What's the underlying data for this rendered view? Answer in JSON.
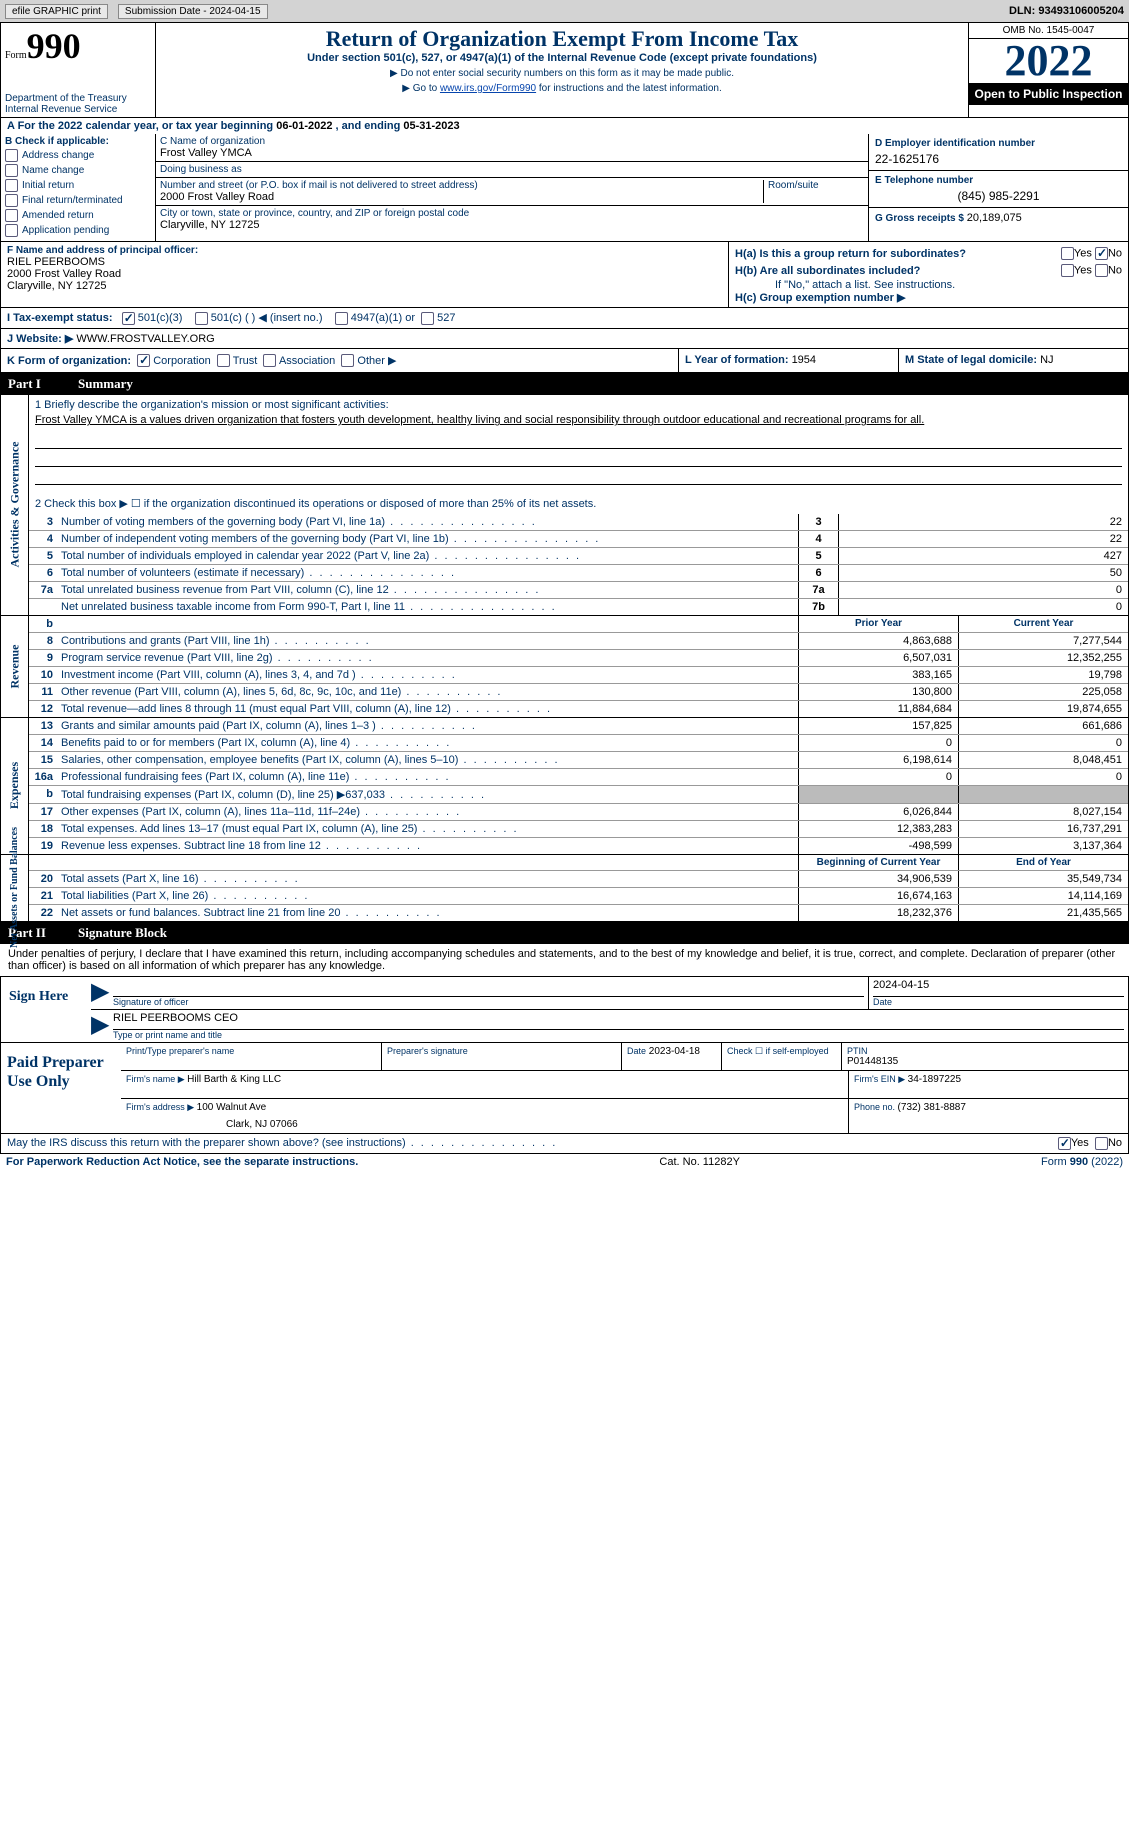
{
  "topbar": {
    "efile": "efile GRAPHIC print",
    "submission_label": "Submission Date - 2024-04-15",
    "dln": "DLN: 93493106005204"
  },
  "header": {
    "form_word": "Form",
    "form_no": "990",
    "dept": "Department of the Treasury",
    "irs": "Internal Revenue Service",
    "title": "Return of Organization Exempt From Income Tax",
    "subtitle": "Under section 501(c), 527, or 4947(a)(1) of the Internal Revenue Code (except private foundations)",
    "note1": "▶ Do not enter social security numbers on this form as it may be made public.",
    "note2_pre": "▶ Go to ",
    "note2_link": "www.irs.gov/Form990",
    "note2_post": " for instructions and the latest information.",
    "omb": "OMB No. 1545-0047",
    "year": "2022",
    "inspection": "Open to Public Inspection"
  },
  "lineA": {
    "pre": "A For the 2022 calendar year, or tax year beginning ",
    "begin": "06-01-2022",
    "mid": "   , and ending ",
    "end": "05-31-2023"
  },
  "b": {
    "heading": "B Check if applicable:",
    "opts": [
      "Address change",
      "Name change",
      "Initial return",
      "Final return/terminated",
      "Amended return",
      "Application pending"
    ]
  },
  "c": {
    "name_label": "C Name of organization",
    "name": "Frost Valley YMCA",
    "dba_label": "Doing business as",
    "dba": "",
    "addr_label": "Number and street (or P.O. box if mail is not delivered to street address)",
    "room_label": "Room/suite",
    "addr": "2000 Frost Valley Road",
    "city_label": "City or town, state or province, country, and ZIP or foreign postal code",
    "city": "Claryville, NY  12725"
  },
  "d": {
    "label": "D Employer identification number",
    "val": "22-1625176",
    "e_label": "E Telephone number",
    "e_val": "(845) 985-2291",
    "g_label": "G Gross receipts $ ",
    "g_val": "20,189,075"
  },
  "f": {
    "label": "F Name and address of principal officer:",
    "name": "RIEL PEERBOOMS",
    "addr1": "2000 Frost Valley Road",
    "addr2": "Claryville, NY  12725"
  },
  "h": {
    "ha": "H(a)  Is this a group return for subordinates?",
    "hb": "H(b)  Are all subordinates included?",
    "hb_note": "If \"No,\" attach a list. See instructions.",
    "hc": "H(c)  Group exemption number ▶",
    "yes": "Yes",
    "no": "No"
  },
  "i": {
    "label": "I   Tax-exempt status:",
    "o1": "501(c)(3)",
    "o2": "501(c) (  ) ◀ (insert no.)",
    "o3": "4947(a)(1) or",
    "o4": "527"
  },
  "j": {
    "label": "J   Website: ▶",
    "val": " WWW.FROSTVALLEY.ORG"
  },
  "k": {
    "label": "K Form of organization:",
    "o1": "Corporation",
    "o2": "Trust",
    "o3": "Association",
    "o4": "Other ▶"
  },
  "l": {
    "label": "L Year of formation: ",
    "val": "1954"
  },
  "m": {
    "label": "M State of legal domicile: ",
    "val": "NJ"
  },
  "part1": {
    "num": "Part I",
    "title": "Summary"
  },
  "mission": {
    "q": "1   Briefly describe the organization's mission or most significant activities:",
    "text": "Frost Valley YMCA is a values driven organization that fosters youth development, healthy living and social responsibility through outdoor educational and recreational programs for all."
  },
  "line2": "2   Check this box ▶ ☐  if the organization discontinued its operations or disposed of more than 25% of its net assets.",
  "rows_ag": [
    {
      "n": "3",
      "d": "Number of voting members of the governing body (Part VI, line 1a)",
      "b": "3",
      "v": "22"
    },
    {
      "n": "4",
      "d": "Number of independent voting members of the governing body (Part VI, line 1b)",
      "b": "4",
      "v": "22"
    },
    {
      "n": "5",
      "d": "Total number of individuals employed in calendar year 2022 (Part V, line 2a)",
      "b": "5",
      "v": "427"
    },
    {
      "n": "6",
      "d": "Total number of volunteers (estimate if necessary)",
      "b": "6",
      "v": "50"
    },
    {
      "n": "7a",
      "d": "Total unrelated business revenue from Part VIII, column (C), line 12",
      "b": "7a",
      "v": "0"
    },
    {
      "n": "",
      "d": "Net unrelated business taxable income from Form 990-T, Part I, line 11",
      "b": "7b",
      "v": "0"
    }
  ],
  "col_hdr": {
    "prior": "Prior Year",
    "curr": "Current Year"
  },
  "rows_rev": [
    {
      "n": "8",
      "d": "Contributions and grants (Part VIII, line 1h)",
      "p": "4,863,688",
      "c": "7,277,544"
    },
    {
      "n": "9",
      "d": "Program service revenue (Part VIII, line 2g)",
      "p": "6,507,031",
      "c": "12,352,255"
    },
    {
      "n": "10",
      "d": "Investment income (Part VIII, column (A), lines 3, 4, and 7d )",
      "p": "383,165",
      "c": "19,798"
    },
    {
      "n": "11",
      "d": "Other revenue (Part VIII, column (A), lines 5, 6d, 8c, 9c, 10c, and 11e)",
      "p": "130,800",
      "c": "225,058"
    },
    {
      "n": "12",
      "d": "Total revenue—add lines 8 through 11 (must equal Part VIII, column (A), line 12)",
      "p": "11,884,684",
      "c": "19,874,655"
    }
  ],
  "rows_exp": [
    {
      "n": "13",
      "d": "Grants and similar amounts paid (Part IX, column (A), lines 1–3 )",
      "p": "157,825",
      "c": "661,686"
    },
    {
      "n": "14",
      "d": "Benefits paid to or for members (Part IX, column (A), line 4)",
      "p": "0",
      "c": "0"
    },
    {
      "n": "15",
      "d": "Salaries, other compensation, employee benefits (Part IX, column (A), lines 5–10)",
      "p": "6,198,614",
      "c": "8,048,451"
    },
    {
      "n": "16a",
      "d": "Professional fundraising fees (Part IX, column (A), line 11e)",
      "p": "0",
      "c": "0"
    },
    {
      "n": "b",
      "d": "Total fundraising expenses (Part IX, column (D), line 25) ▶637,033",
      "p": "gray",
      "c": "gray"
    },
    {
      "n": "17",
      "d": "Other expenses (Part IX, column (A), lines 11a–11d, 11f–24e)",
      "p": "6,026,844",
      "c": "8,027,154"
    },
    {
      "n": "18",
      "d": "Total expenses. Add lines 13–17 (must equal Part IX, column (A), line 25)",
      "p": "12,383,283",
      "c": "16,737,291"
    },
    {
      "n": "19",
      "d": "Revenue less expenses. Subtract line 18 from line 12",
      "p": "-498,599",
      "c": "3,137,364"
    }
  ],
  "col_hdr2": {
    "prior": "Beginning of Current Year",
    "curr": "End of Year"
  },
  "rows_na": [
    {
      "n": "20",
      "d": "Total assets (Part X, line 16)",
      "p": "34,906,539",
      "c": "35,549,734"
    },
    {
      "n": "21",
      "d": "Total liabilities (Part X, line 26)",
      "p": "16,674,163",
      "c": "14,114,169"
    },
    {
      "n": "22",
      "d": "Net assets or fund balances. Subtract line 21 from line 20",
      "p": "18,232,376",
      "c": "21,435,565"
    }
  ],
  "rot": {
    "ag": "Activities & Governance",
    "rev": "Revenue",
    "exp": "Expenses",
    "na": "Net Assets or\nFund Balances"
  },
  "part2": {
    "num": "Part II",
    "title": "Signature Block"
  },
  "sig_intro": "Under penalties of perjury, I declare that I have examined this return, including accompanying schedules and statements, and to the best of my knowledge and belief, it is true, correct, and complete. Declaration of preparer (other than officer) is based on all information of which preparer has any knowledge.",
  "sign": {
    "here": "Sign Here",
    "sig_label": "Signature of officer",
    "date": "2024-04-15",
    "date_label": "Date",
    "name": "RIEL PEERBOOMS CEO",
    "name_label": "Type or print name and title"
  },
  "paid": {
    "title": "Paid Preparer Use Only",
    "c1": "Print/Type preparer's name",
    "c2": "Preparer's signature",
    "c3_label": "Date",
    "c3": "2023-04-18",
    "c4_label": "Check ☐ if self-employed",
    "c5_label": "PTIN",
    "c5": "P01448135",
    "firm_label": "Firm's name     ▶ ",
    "firm": "Hill Barth & King LLC",
    "ein_label": "Firm's EIN ▶ ",
    "ein": "34-1897225",
    "addr_label": "Firm's address ▶ ",
    "addr": "100 Walnut Ave",
    "addr2": "Clark, NJ  07066",
    "phone_label": "Phone no. ",
    "phone": "(732) 381-8887"
  },
  "discuss": {
    "q": "May the IRS discuss this return with the preparer shown above? (see instructions)",
    "yes": "Yes",
    "no": "No"
  },
  "footer": {
    "left": "For Paperwork Reduction Act Notice, see the separate instructions.",
    "mid": "Cat. No. 11282Y",
    "right": "Form 990 (2022)"
  }
}
